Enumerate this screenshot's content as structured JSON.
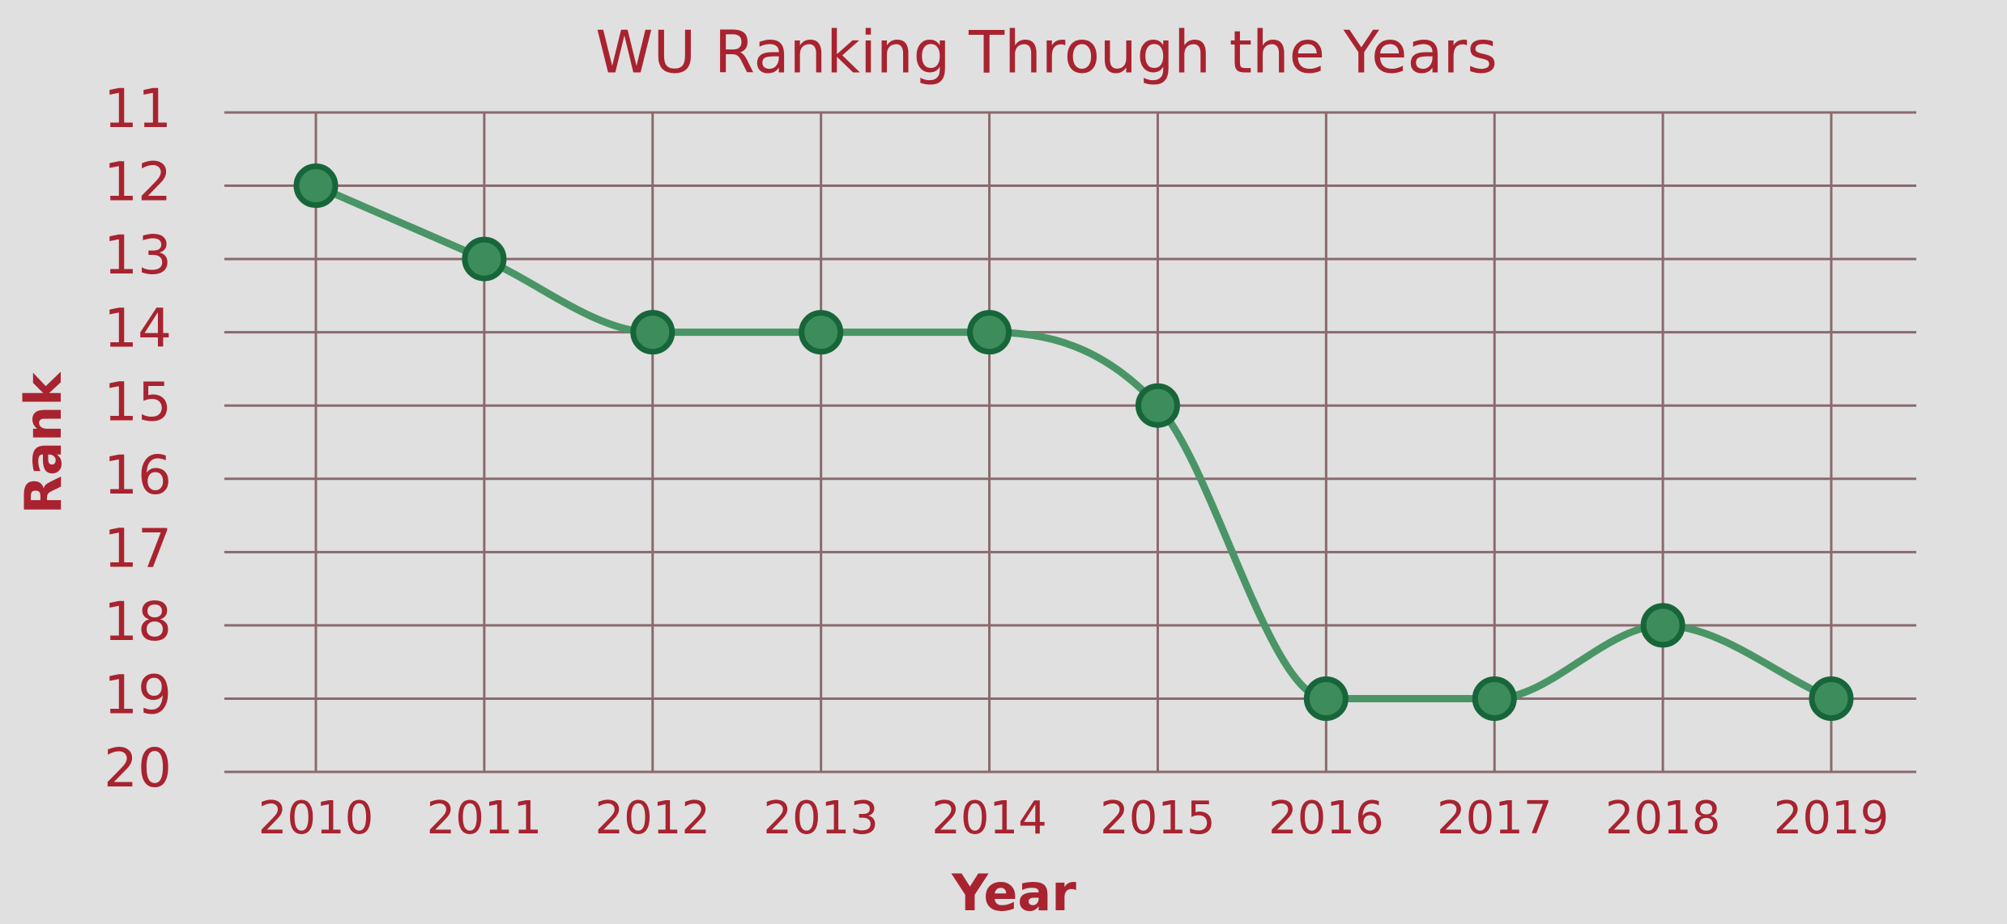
{
  "chart_data": {
    "type": "line",
    "title": "WU Ranking Through the Years",
    "x_label": "Year",
    "y_label": "Rank",
    "categories": [
      "2010",
      "2011",
      "2012",
      "2013",
      "2014",
      "2015",
      "2016",
      "2017",
      "2018",
      "2019"
    ],
    "values": [
      12,
      13,
      14,
      14,
      14,
      15,
      19,
      19,
      18,
      19
    ],
    "color": "#4a9566",
    "marker_color": "#3d8c5c",
    "ylim": [
      11,
      20
    ],
    "yticks": [
      11,
      12,
      13,
      14,
      15,
      16,
      17,
      18,
      19,
      20
    ],
    "invert_y": true,
    "grid": true,
    "smooth": true
  }
}
